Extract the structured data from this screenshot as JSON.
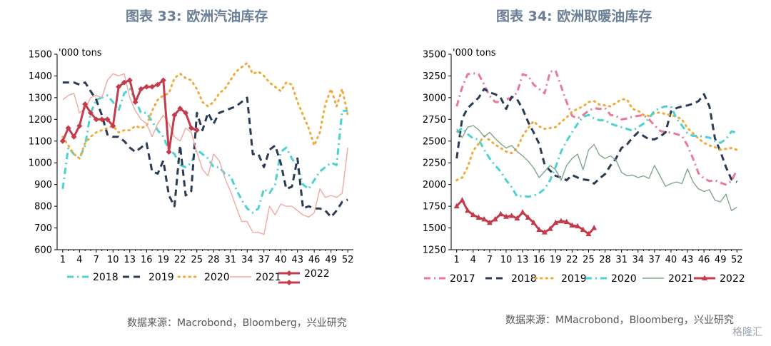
{
  "colors": {
    "2017": "#e8799a",
    "2018": "#4fd1d0",
    "2019": "#2b3a55",
    "2020": "#f1a93a",
    "2021": "#f0a9a1",
    "2021b": "#7fa889",
    "2022": "#c43b4b"
  },
  "chart_data": [
    {
      "type": "line",
      "title": "图表 33: 欧洲汽油库存",
      "unit_label": "'000 tons",
      "source": "数据来源：Macrobond，Bloomberg，兴业研究",
      "xlim": [
        0,
        53
      ],
      "ylim": [
        600,
        1500
      ],
      "x_ticks": [
        1,
        4,
        7,
        10,
        13,
        16,
        19,
        22,
        25,
        28,
        31,
        34,
        37,
        40,
        43,
        46,
        49,
        52
      ],
      "y_ticks": [
        600,
        700,
        800,
        900,
        1000,
        1100,
        1200,
        1300,
        1400,
        1500
      ],
      "legend_placement": "bottom",
      "grid": false,
      "series": [
        {
          "name": "2018",
          "color_key": "2018",
          "style": "dashdot",
          "values": [
            880,
            1070,
            1040,
            1020,
            1080,
            1230,
            1290,
            1300,
            1310,
            1280,
            1240,
            1320,
            1340,
            1290,
            1230,
            1230,
            1190,
            1150,
            1120,
            1060,
            1040,
            990,
            980,
            1000,
            1060,
            1040,
            1020,
            980,
            980,
            950,
            940,
            880,
            830,
            790,
            770,
            790,
            880,
            860,
            900,
            1050,
            1070,
            1020,
            980,
            900,
            880,
            920,
            960,
            980,
            1000,
            990,
            1240,
            1240
          ]
        },
        {
          "name": "2019",
          "color_key": "2019",
          "style": "dash",
          "values": [
            1370,
            1370,
            1370,
            1360,
            1370,
            1330,
            1290,
            1220,
            1130,
            1120,
            1120,
            1100,
            1070,
            1050,
            1070,
            1090,
            960,
            950,
            1010,
            850,
            800,
            1080,
            850,
            870,
            1230,
            1150,
            1230,
            1180,
            1230,
            1240,
            1250,
            1260,
            1280,
            1300,
            1040,
            1040,
            980,
            1060,
            1080,
            1000,
            880,
            890,
            1020,
            790,
            800,
            790,
            790,
            780,
            750,
            780,
            820,
            830
          ]
        },
        {
          "name": "2020",
          "color_key": "2020",
          "style": "dot",
          "values": [
            1120,
            1080,
            1040,
            1020,
            1090,
            1120,
            1140,
            1150,
            1160,
            1170,
            1140,
            1150,
            1150,
            1170,
            1160,
            1170,
            1240,
            1290,
            1310,
            1320,
            1390,
            1410,
            1390,
            1380,
            1340,
            1280,
            1260,
            1280,
            1320,
            1340,
            1380,
            1420,
            1440,
            1460,
            1410,
            1420,
            1400,
            1370,
            1350,
            1330,
            1370,
            1360,
            1280,
            1220,
            1160,
            1080,
            1140,
            1270,
            1340,
            1260,
            1340,
            1220
          ]
        },
        {
          "name": "2021",
          "color_key": "2021",
          "style": "solid",
          "values": [
            1290,
            1310,
            1320,
            1230,
            1250,
            1300,
            1310,
            1300,
            1380,
            1410,
            1400,
            1410,
            1300,
            1240,
            1200,
            1180,
            1120,
            1180,
            1220,
            1180,
            1120,
            1100,
            1160,
            1140,
            1050,
            970,
            940,
            1040,
            1010,
            930,
            870,
            800,
            730,
            730,
            680,
            680,
            670,
            800,
            760,
            810,
            800,
            800,
            780,
            760,
            750,
            770,
            880,
            840,
            850,
            840,
            860,
            1070
          ]
        },
        {
          "name": "2022",
          "color_key": "2022",
          "style": "solid-marker",
          "values": [
            1100,
            1160,
            1120,
            1170,
            1270,
            1230,
            1200,
            1200,
            1200,
            1170,
            1350,
            1370,
            1380,
            1280,
            1340,
            1350,
            1350,
            1360,
            1380,
            1050,
            1220,
            1250,
            1230,
            1160,
            1150
          ]
        }
      ]
    },
    {
      "type": "line",
      "title": "图表 34: 欧洲取暖油库存",
      "unit_label": "'000 tons",
      "source": "数据来源：MMacrobond，Bloomberg，兴业研究",
      "xlim": [
        0,
        53
      ],
      "ylim": [
        1250,
        3500
      ],
      "x_ticks": [
        1,
        4,
        7,
        10,
        13,
        16,
        19,
        22,
        25,
        28,
        31,
        34,
        37,
        40,
        43,
        46,
        49,
        52
      ],
      "y_ticks": [
        1250,
        1500,
        1750,
        2000,
        2250,
        2500,
        2750,
        3000,
        3250,
        3500
      ],
      "legend_placement": "bottom",
      "grid": false,
      "series": [
        {
          "name": "2017",
          "color_key": "2017",
          "style": "dashdot",
          "values": [
            2900,
            3120,
            3270,
            3280,
            3270,
            3150,
            3020,
            2950,
            2950,
            2980,
            3000,
            3060,
            3270,
            3250,
            3150,
            3100,
            3050,
            3300,
            3310,
            3130,
            2950,
            2790,
            2760,
            2800,
            2850,
            2880,
            2870,
            2880,
            2800,
            2790,
            2750,
            2760,
            2780,
            2790,
            2800,
            2750,
            2680,
            2620,
            2600,
            2600,
            2580,
            2560,
            2450,
            2300,
            2130,
            2070,
            2040,
            2050,
            2020,
            2000,
            2040,
            2170
          ]
        },
        {
          "name": "2018",
          "color_key": "2019",
          "style": "dash",
          "values": [
            2300,
            2760,
            2880,
            2940,
            3000,
            3100,
            3060,
            3040,
            3000,
            2870,
            3010,
            2980,
            2870,
            2720,
            2600,
            2470,
            2230,
            2160,
            2100,
            2080,
            2050,
            2110,
            2080,
            2060,
            2050,
            2010,
            2070,
            2120,
            2220,
            2300,
            2420,
            2460,
            2540,
            2600,
            2560,
            2520,
            2520,
            2550,
            2600,
            2840,
            2880,
            2900,
            2910,
            2930,
            2960,
            3040,
            2900,
            2530,
            2380,
            2200,
            2060,
            2030
          ]
        },
        {
          "name": "2019",
          "color_key": "2020",
          "style": "dot",
          "values": [
            2050,
            2080,
            2200,
            2390,
            2470,
            2560,
            2510,
            2460,
            2420,
            2380,
            2360,
            2420,
            2560,
            2650,
            2730,
            2670,
            2640,
            2650,
            2660,
            2720,
            2770,
            2840,
            2870,
            2900,
            2950,
            2960,
            2920,
            2910,
            2900,
            2940,
            2980,
            2980,
            2870,
            2850,
            2800,
            2790,
            2820,
            2830,
            2810,
            2800,
            2780,
            2750,
            2650,
            2590,
            2530,
            2480,
            2450,
            2430,
            2400,
            2410,
            2420,
            2400
          ]
        },
        {
          "name": "2020",
          "color_key": "2018",
          "style": "dashdot",
          "values": [
            2600,
            2650,
            2580,
            2530,
            2520,
            2400,
            2300,
            2220,
            2150,
            2050,
            1970,
            1860,
            1870,
            1860,
            1870,
            1900,
            1950,
            2050,
            2200,
            2380,
            2500,
            2600,
            2700,
            2780,
            2800,
            2760,
            2740,
            2740,
            2700,
            2680,
            2660,
            2640,
            2620,
            2660,
            2700,
            2760,
            2850,
            2880,
            2900,
            2900,
            2760,
            2680,
            2590,
            2560,
            2560,
            2550,
            2540,
            2500,
            2480,
            2520,
            2610,
            2600
          ]
        },
        {
          "name": "2021",
          "color_key": "2021b",
          "style": "solid",
          "values": [
            2640,
            2540,
            2660,
            2680,
            2630,
            2550,
            2600,
            2530,
            2470,
            2420,
            2450,
            2380,
            2330,
            2270,
            2190,
            2080,
            2150,
            2220,
            2170,
            2050,
            2220,
            2300,
            2350,
            2170,
            2400,
            2460,
            2340,
            2300,
            2330,
            2280,
            2140,
            2100,
            2110,
            2080,
            2100,
            2070,
            2220,
            2100,
            1980,
            2010,
            2030,
            2010,
            2180,
            2030,
            1950,
            1920,
            1940,
            1820,
            1800,
            1890,
            1700,
            1740
          ]
        },
        {
          "name": "2022",
          "color_key": "2022",
          "style": "solid-marker",
          "values": [
            1750,
            1820,
            1700,
            1650,
            1620,
            1600,
            1560,
            1600,
            1660,
            1630,
            1640,
            1610,
            1680,
            1620,
            1560,
            1480,
            1450,
            1490,
            1560,
            1580,
            1570,
            1530,
            1520,
            1480,
            1430,
            1500
          ]
        }
      ]
    }
  ]
}
